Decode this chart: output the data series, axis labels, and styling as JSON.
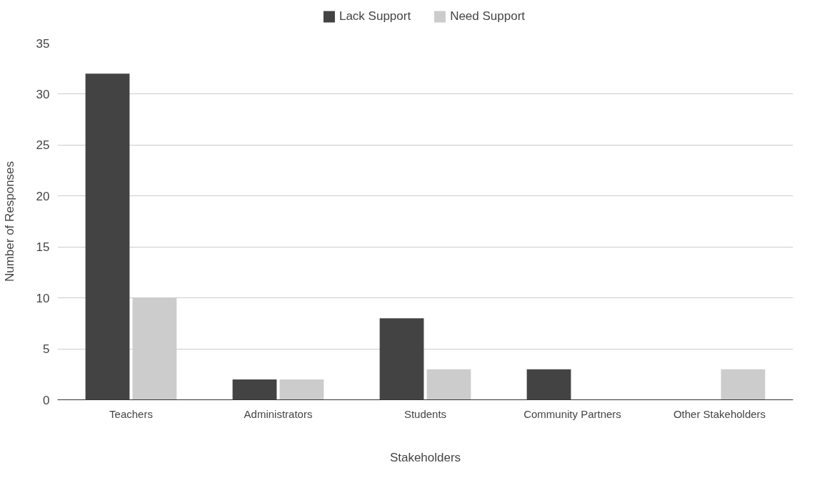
{
  "chart_data": {
    "type": "bar",
    "xlabel": "Stakeholders",
    "ylabel": "Number of Responses",
    "categories": [
      "Teachers",
      "Administrators",
      "Students",
      "Community Partners",
      "Other Stakeholders"
    ],
    "series": [
      {
        "name": "Lack Support",
        "color": "#434343",
        "values": [
          32,
          2,
          8,
          3,
          0
        ]
      },
      {
        "name": "Need Support",
        "color": "#cccccc",
        "values": [
          10,
          2,
          3,
          0,
          3
        ]
      }
    ],
    "ylim": [
      0,
      35
    ],
    "yticks": [
      0,
      5,
      10,
      15,
      20,
      25,
      30,
      35
    ],
    "grid": "y",
    "legend": "top"
  }
}
